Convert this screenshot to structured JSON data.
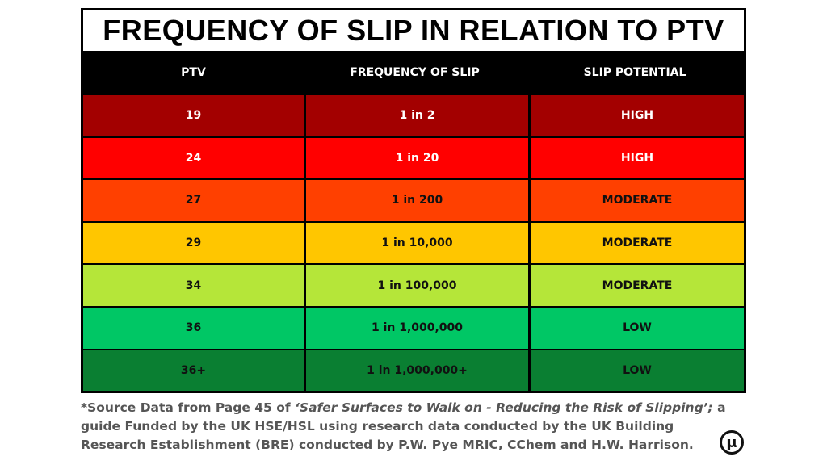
{
  "chart_data": {
    "type": "table",
    "title": "FREQUENCY OF SLIP IN RELATION TO PTV",
    "columns": [
      "PTV",
      "FREQUENCY OF SLIP",
      "SLIP POTENTIAL"
    ],
    "rows": [
      {
        "ptv": "19",
        "frequency": "1 in 2",
        "potential": "HIGH",
        "color": "#a30000",
        "text_color": "#ffffff"
      },
      {
        "ptv": "24",
        "frequency": "1 in 20",
        "potential": "HIGH",
        "color": "#ff0000",
        "text_color": "#ffffff"
      },
      {
        "ptv": "27",
        "frequency": "1 in 200",
        "potential": "MODERATE",
        "color": "#ff4000",
        "text_color": "#111111"
      },
      {
        "ptv": "29",
        "frequency": "1 in 10,000",
        "potential": "MODERATE",
        "color": "#ffc600",
        "text_color": "#111111"
      },
      {
        "ptv": "34",
        "frequency": "1 in 100,000",
        "potential": "MODERATE",
        "color": "#b5e639",
        "text_color": "#111111"
      },
      {
        "ptv": "36",
        "frequency": "1 in 1,000,000",
        "potential": "LOW",
        "color": "#00c765",
        "text_color": "#111111"
      },
      {
        "ptv": "36+",
        "frequency": "1 in 1,000,000+",
        "potential": "LOW",
        "color": "#0a7f32",
        "text_color": "#111111"
      }
    ]
  },
  "footnote": {
    "prefix": "*Source Data from Page 45 of ",
    "source_title": "‘Safer Surfaces to Walk on - Reducing the Risk of Slipping’;",
    "suffix": " a guide Funded by the UK HSE/HSL using research data conducted by the UK Building Research Establishment (BRE) conducted by P.W. Pye MRIC, CChem and H.W. Harrison."
  },
  "logo": {
    "glyph": "μ"
  }
}
